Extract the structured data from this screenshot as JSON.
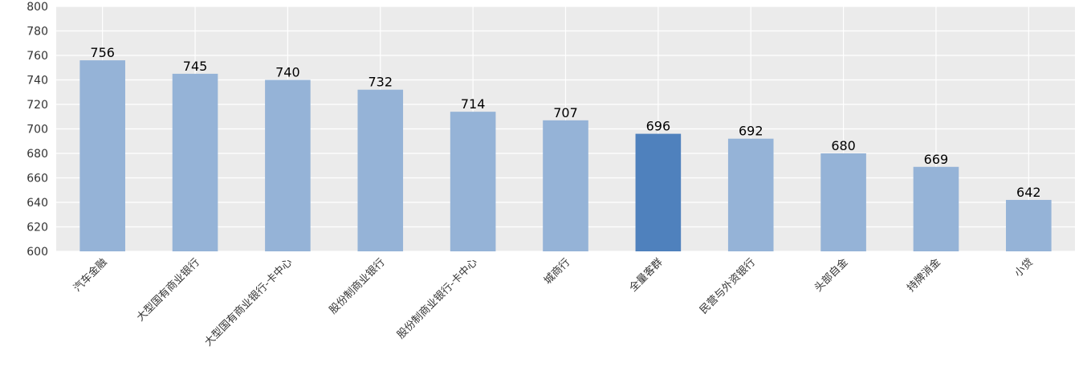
{
  "chart_data": {
    "type": "bar",
    "title": "",
    "xlabel": "",
    "ylabel": "",
    "categories": [
      "汽车金融",
      "大型国有商业银行",
      "大型国有商业银行-卡中心",
      "股份制商业银行",
      "股份制商业银行-卡中心",
      "城商行",
      "全量客群",
      "民营与外资银行",
      "头部自金",
      "持牌消金",
      "小贷"
    ],
    "values": [
      756,
      745,
      740,
      732,
      714,
      707,
      696,
      692,
      680,
      669,
      642
    ],
    "highlight_category": "全量客群",
    "ylim": [
      600,
      800
    ],
    "yticks": [
      600,
      620,
      640,
      660,
      680,
      700,
      720,
      740,
      760,
      780,
      800
    ],
    "grid": true,
    "legend": "none",
    "colors": {
      "bar": "#95b3d7",
      "highlight": "#4f81bd",
      "plot_background": "#ebebeb",
      "grid": "#ffffff"
    }
  }
}
